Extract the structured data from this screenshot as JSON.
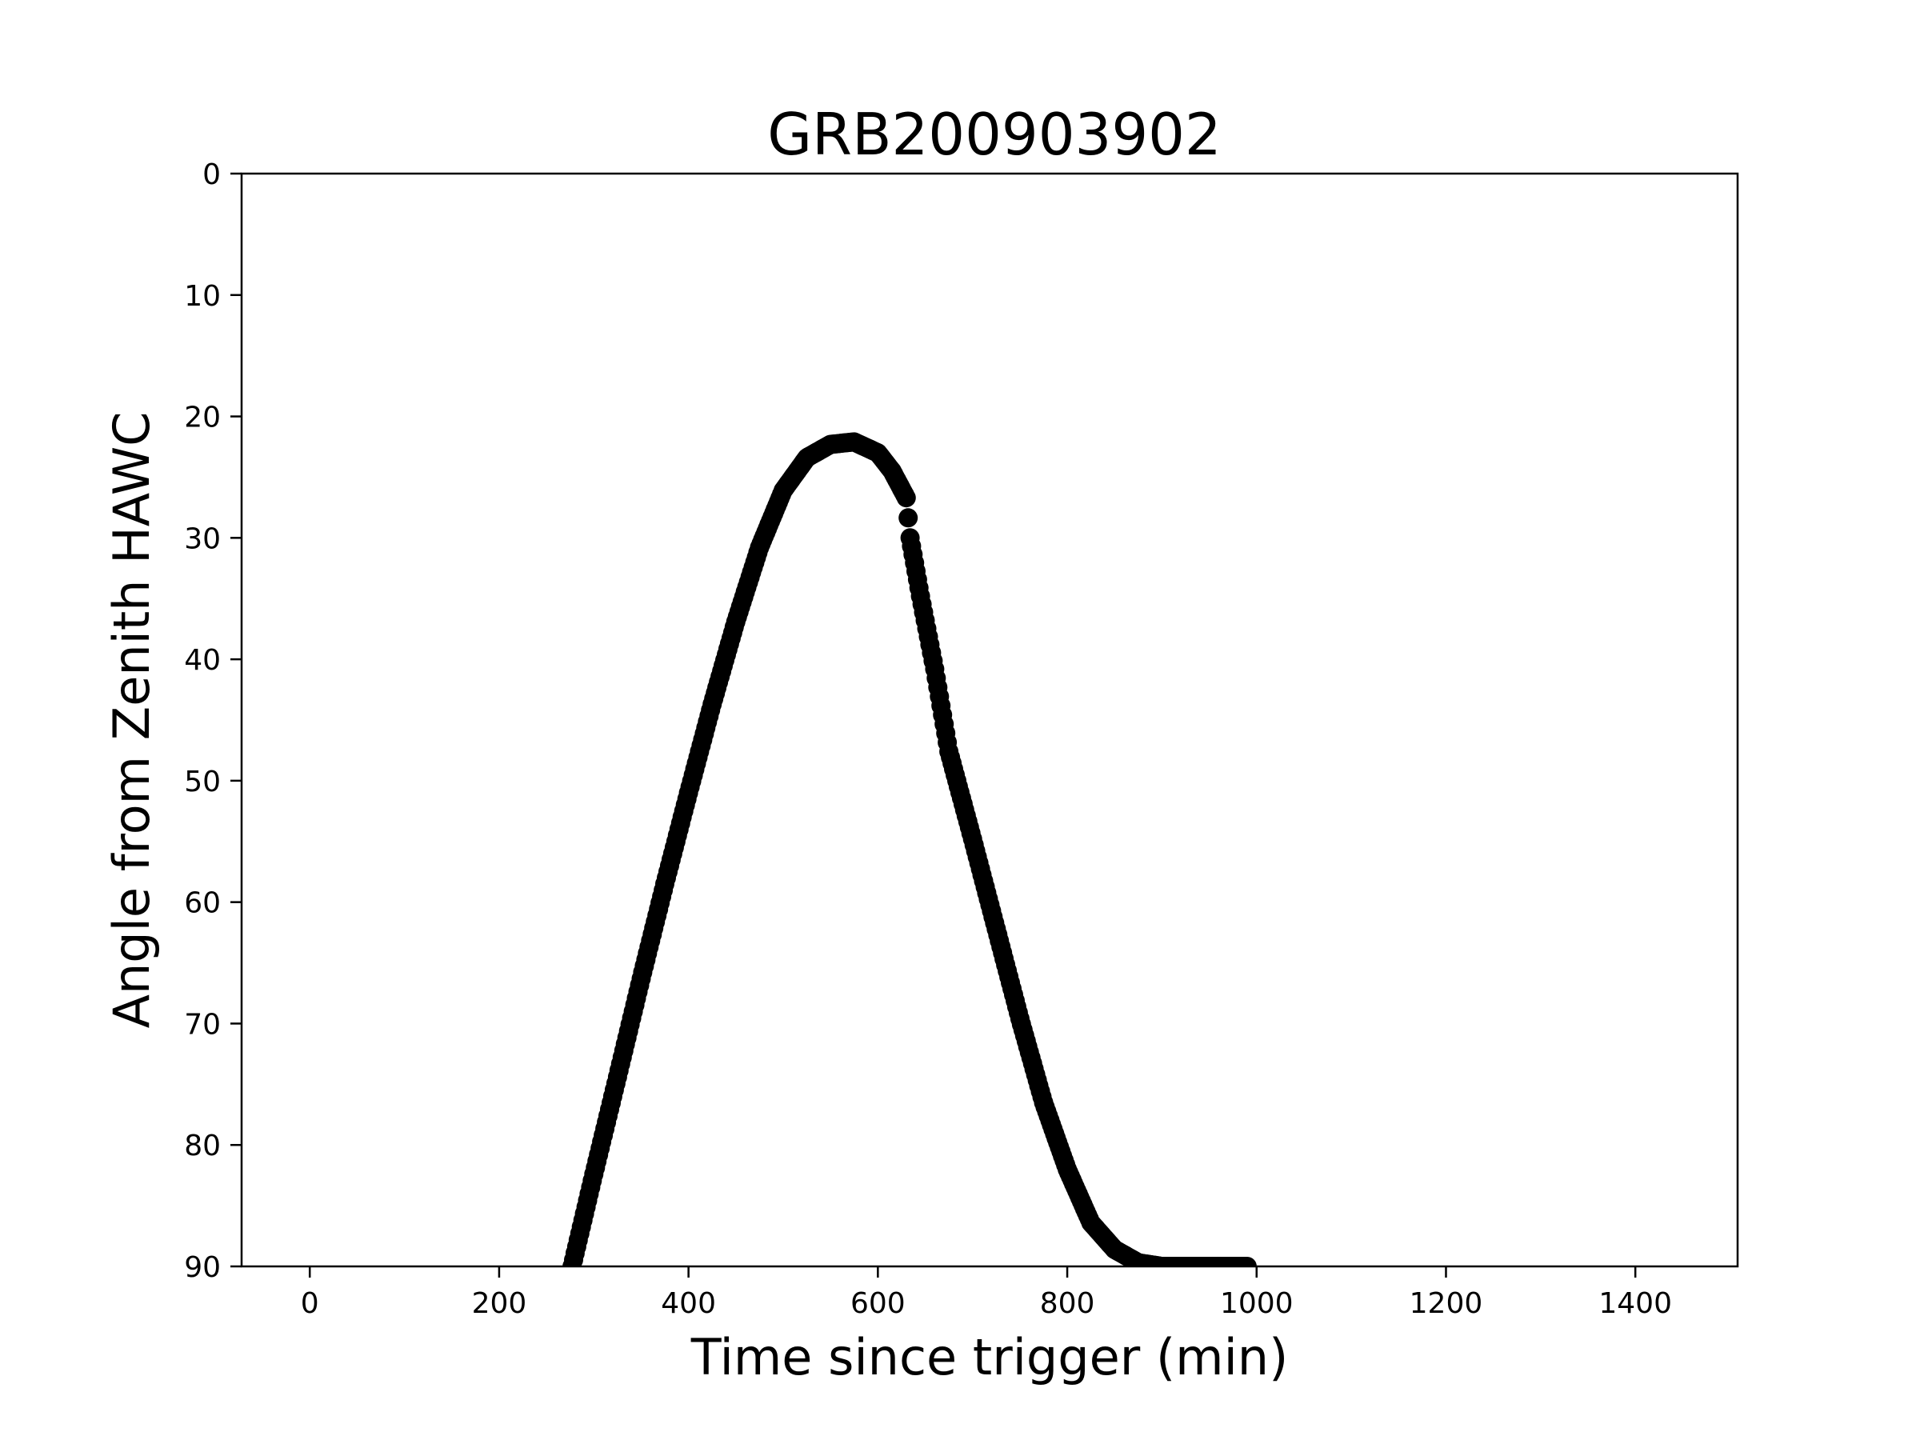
{
  "chart_data": {
    "type": "scatter",
    "title": "GRB200903902",
    "xlabel": "Time since trigger (min)",
    "ylabel": "Angle from Zenith HAWC",
    "xlim": [
      -72,
      1508
    ],
    "ylim": [
      90,
      0
    ],
    "y_inverted": true,
    "grid": false,
    "legend": "none",
    "marker_color": "#000000",
    "xticks": [
      0,
      200,
      400,
      600,
      800,
      1000,
      1200,
      1400
    ],
    "xtick_labels": [
      "0",
      "200",
      "400",
      "600",
      "800",
      "1000",
      "1200",
      "1400"
    ],
    "yticks": [
      0,
      10,
      20,
      30,
      40,
      50,
      60,
      70,
      80,
      90
    ],
    "ytick_labels": [
      "0",
      "10",
      "20",
      "30",
      "40",
      "50",
      "60",
      "70",
      "80",
      "90"
    ],
    "series": [
      {
        "x": [
          277,
          300,
          325,
          350,
          375,
          400,
          425,
          450,
          475,
          500,
          525,
          550,
          575,
          600,
          615,
          630,
          634,
          645,
          660,
          675,
          700,
          725,
          750,
          775,
          800,
          825,
          850,
          875,
          900,
          925,
          950,
          975,
          990
        ],
        "y": [
          90,
          82.4,
          74.4,
          66.3,
          58.5,
          51.0,
          43.7,
          36.9,
          30.8,
          26.1,
          23.4,
          22.3,
          22.1,
          23.0,
          24.5,
          26.7,
          30.0,
          34.8,
          40.8,
          47.6,
          54.8,
          62.2,
          69.6,
          76.5,
          82.0,
          86.4,
          88.6,
          89.7,
          90,
          90,
          90,
          90,
          90
        ]
      }
    ]
  }
}
